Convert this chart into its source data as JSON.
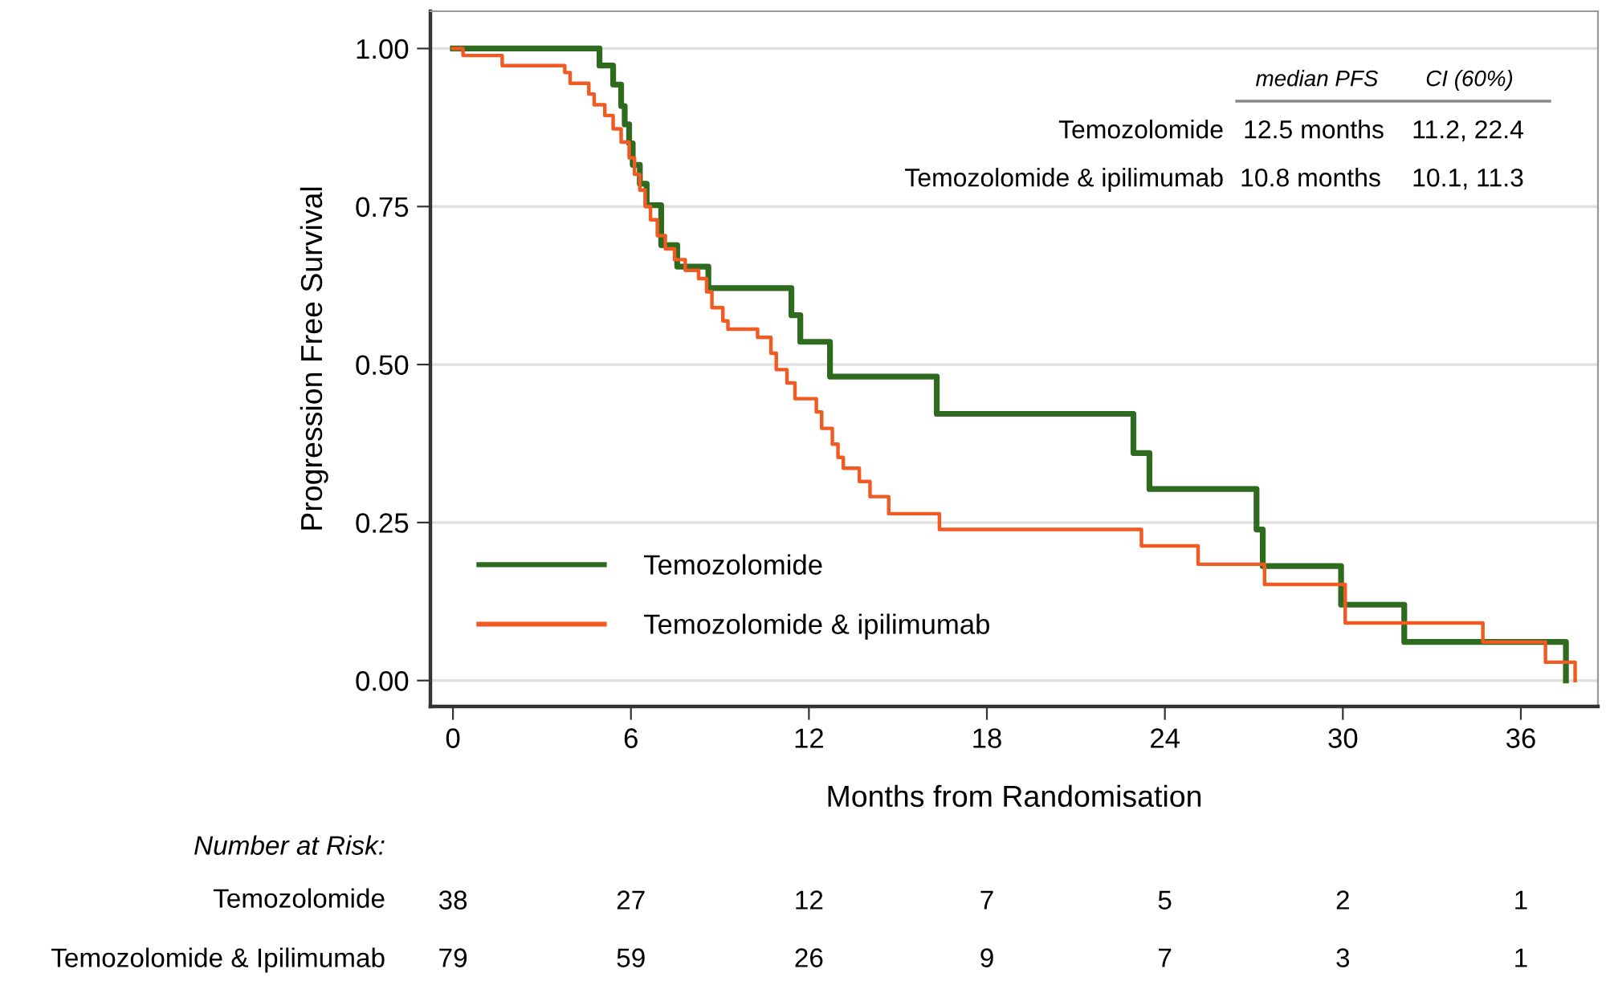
{
  "chart_data": {
    "type": "step",
    "xlabel": "Months from Randomisation",
    "ylabel": "Progression Free Survival",
    "series": [
      {
        "name": "Temozolomide",
        "color": "#2e6b1f",
        "x": [
          0,
          4.94,
          5.4,
          5.67,
          5.79,
          5.94,
          6.06,
          6.3,
          6.53,
          7.02,
          7.56,
          8.61,
          11.41,
          11.71,
          12.71,
          16.31,
          22.94,
          23.48,
          27.09,
          27.3,
          29.94,
          32.07,
          37.52
        ],
        "values": [
          1.0,
          0.973,
          0.943,
          0.909,
          0.88,
          0.85,
          0.816,
          0.786,
          0.752,
          0.689,
          0.655,
          0.621,
          0.578,
          0.536,
          0.481,
          0.422,
          0.36,
          0.303,
          0.239,
          0.181,
          0.12,
          0.061,
          0
        ]
      },
      {
        "name": "Temozolomide & ipilimumab",
        "color": "#f05a23",
        "x": [
          0,
          0.34,
          1.66,
          3.77,
          3.95,
          4.58,
          4.76,
          5.12,
          5.4,
          5.67,
          5.94,
          6.12,
          6.3,
          6.48,
          6.66,
          6.89,
          7.16,
          7.47,
          7.83,
          8.28,
          8.55,
          8.73,
          9.1,
          9.27,
          10.27,
          10.72,
          10.9,
          11.26,
          11.53,
          12.25,
          12.43,
          12.79,
          12.98,
          13.16,
          13.7,
          14.06,
          14.69,
          16.4,
          23.21,
          25.12,
          27.36,
          30.08,
          34.72,
          36.83,
          37.83
        ],
        "values": [
          1.0,
          0.989,
          0.973,
          0.962,
          0.945,
          0.928,
          0.911,
          0.894,
          0.873,
          0.852,
          0.827,
          0.801,
          0.776,
          0.75,
          0.729,
          0.704,
          0.683,
          0.666,
          0.649,
          0.636,
          0.615,
          0.59,
          0.569,
          0.556,
          0.543,
          0.518,
          0.492,
          0.471,
          0.446,
          0.425,
          0.399,
          0.374,
          0.353,
          0.336,
          0.315,
          0.291,
          0.264,
          0.239,
          0.213,
          0.184,
          0.152,
          0.091,
          0.061,
          0.029,
          0
        ]
      }
    ],
    "xlim": [
      -0.76,
      38.6
    ],
    "xticks": [
      0,
      6,
      12,
      18,
      24,
      30,
      36
    ],
    "ylim": [
      -0.041,
      1.059
    ],
    "yticks": [
      {
        "value": 0,
        "label": "0.00"
      },
      {
        "value": 0.25,
        "label": "0.25"
      },
      {
        "value": 0.5,
        "label": "0.50"
      },
      {
        "value": 0.75,
        "label": "0.75"
      },
      {
        "value": 1,
        "label": "1.00"
      }
    ],
    "grid": "y",
    "legend": "bottom left",
    "annotations": [
      "median PFS",
      "CI (60%)",
      "Temozolomide",
      "12.5 months",
      "11.2, 22.4",
      "Temozolomide & ipilimumab",
      "10.8 months",
      "10.1, 11.3",
      "Number at Risk:",
      "Temozolomide",
      "38",
      "27",
      "12",
      "7",
      "5",
      "2",
      "1",
      "Temozolomide & Ipilimumab",
      "79",
      "59",
      "26",
      "9",
      "7",
      "3",
      "1"
    ]
  }
}
